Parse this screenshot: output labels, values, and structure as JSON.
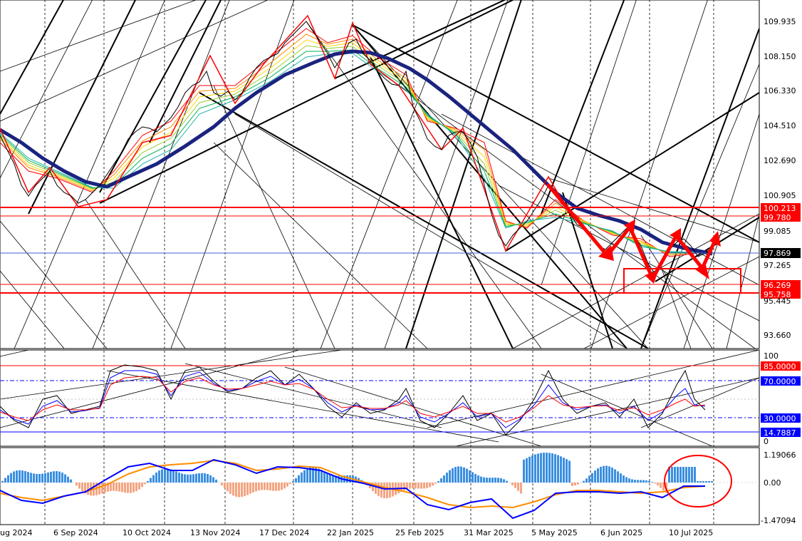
{
  "price_panel": {
    "y_ticks": [
      "109.935",
      "108.150",
      "106.330",
      "104.510",
      "102.690",
      "100.905",
      "99.085",
      "97.265",
      "95.445",
      "93.660"
    ],
    "current_price": "97.869",
    "level_labels": [
      "100.213",
      "99.780",
      "96.269",
      "95.758"
    ]
  },
  "rsi_panel": {
    "y_ticks": [
      "100",
      "0"
    ],
    "level_labels": [
      "85.0000",
      "70.0000",
      "30.0000",
      "14.7887"
    ]
  },
  "macd_panel": {
    "y_ticks": [
      "1.19066",
      "0.00",
      "-1.47094"
    ]
  },
  "x_axis": {
    "labels": [
      "ug 2024",
      "6 Sep 2024",
      "10 Oct 2024",
      "13 Nov 2024",
      "17 Dec 2024",
      "22 Jan 2025",
      "25 Feb 2025",
      "31 Mar 2025",
      "5 May 2025",
      "6 Jun 2025",
      "10 Jul 2025"
    ]
  },
  "colors": {
    "ma_thick": "#1a237e",
    "trend_red": "#ff0000",
    "rsi_blue": "#0000ff",
    "macd_hist_pos": "#3b8fe0",
    "macd_hist_neg": "#f4a582",
    "macd_signal": "#ff8c00"
  }
}
